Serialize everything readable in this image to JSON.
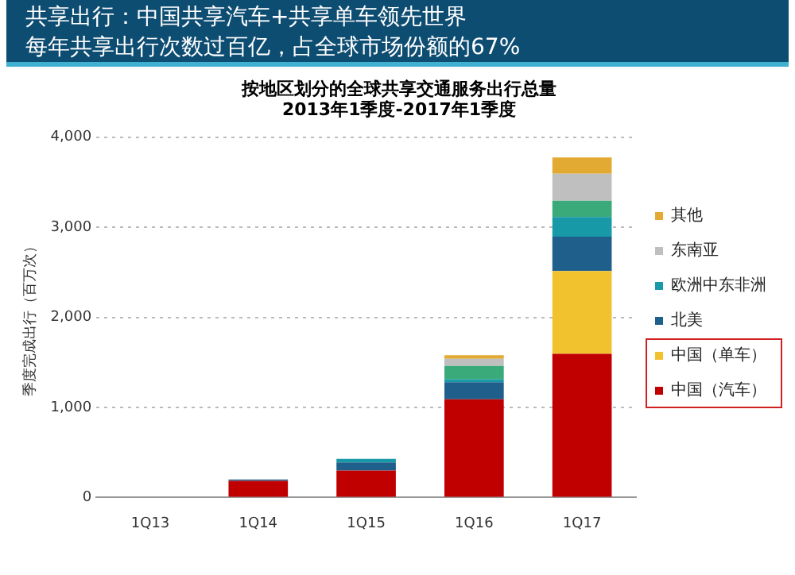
{
  "chart_data": {
    "type": "bar",
    "stacked": true,
    "title": "按地区划分的全球共享交通服务出行总量",
    "subtitle": "2013年1季度-2017年1季度",
    "annotations": [
      "共享出行：中国共享汽车+共享单车领先世界",
      "每年共享出行次数过百亿，占全球市场份额的67%"
    ],
    "ylabel": "季度完成出行（百万次）",
    "categories": [
      "1Q13",
      "1Q14",
      "1Q15",
      "1Q16",
      "1Q17"
    ],
    "series": [
      {
        "name": "中国（汽车）",
        "color": "#c00000",
        "values": [
          0,
          185,
          300,
          1090,
          1595
        ]
      },
      {
        "name": "中国（单车）",
        "color": "#f2c12e",
        "values": [
          0,
          0,
          0,
          0,
          920
        ]
      },
      {
        "name": "北美",
        "color": "#1f5f8b",
        "values": [
          0,
          15,
          90,
          190,
          380
        ]
      },
      {
        "name": "欧洲中东非洲",
        "color": "#1899a8",
        "values": [
          0,
          0,
          40,
          30,
          220
        ]
      },
      {
        "color": "#3aaa7a",
        "values": [
          0,
          0,
          0,
          150,
          180
        ]
      },
      {
        "name": "东南亚",
        "color": "#bfbfbf",
        "values": [
          0,
          0,
          0,
          80,
          300
        ]
      },
      {
        "name": "其他",
        "color": "#e3aa33",
        "values": [
          0,
          0,
          0,
          40,
          180
        ]
      }
    ],
    "ylim": [
      0,
      4000
    ],
    "yticks": [
      {
        "value": 0,
        "label": "0"
      },
      {
        "value": 1000,
        "label": "1,000"
      },
      {
        "value": 2000,
        "label": "2,000"
      },
      {
        "value": 3000,
        "label": "3,000"
      },
      {
        "value": 4000,
        "label": "4,000"
      }
    ],
    "grid": "y",
    "legend": "right"
  }
}
